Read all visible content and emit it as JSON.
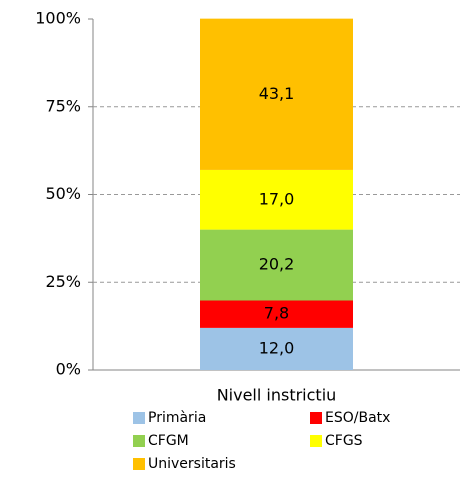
{
  "chart_data": {
    "type": "bar",
    "stacked": true,
    "categories": [
      "Nivell instrictiu"
    ],
    "series": [
      {
        "name": "Primària",
        "color": "#9dc3e6",
        "values": [
          12.0
        ],
        "value_labels": [
          "12,0"
        ]
      },
      {
        "name": "ESO/Batx",
        "color": "#ff0000",
        "values": [
          7.8
        ],
        "value_labels": [
          "7,8"
        ]
      },
      {
        "name": "CFGM",
        "color": "#92d050",
        "values": [
          20.2
        ],
        "value_labels": [
          "20,2"
        ]
      },
      {
        "name": "CFGS",
        "color": "#ffff00",
        "values": [
          17.0
        ],
        "value_labels": [
          "17,0"
        ]
      },
      {
        "name": "Universitaris",
        "color": "#ffc000",
        "values": [
          43.1
        ],
        "value_labels": [
          "43,1"
        ]
      }
    ],
    "ylim": [
      0,
      100
    ],
    "yticks": [
      {
        "value": 0,
        "label": "0%"
      },
      {
        "value": 25,
        "label": "25%"
      },
      {
        "value": 50,
        "label": "50%"
      },
      {
        "value": 75,
        "label": "75%"
      },
      {
        "value": 100,
        "label": "100%"
      }
    ],
    "grid": true,
    "legend": "bottom"
  }
}
